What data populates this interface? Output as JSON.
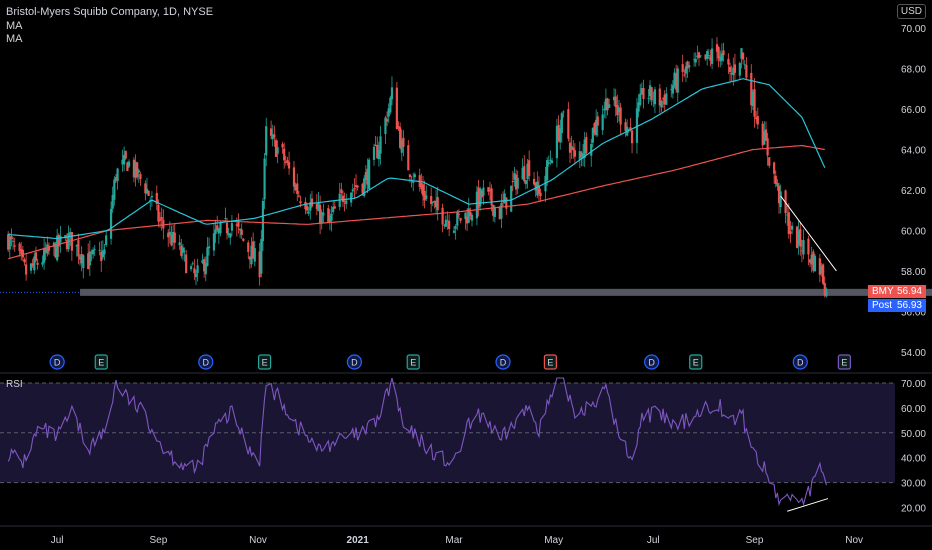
{
  "header": {
    "title": "Bristol-Myers Squibb Company, 1D, NYSE",
    "ma1": "MA",
    "ma2": "MA"
  },
  "currency": "USD",
  "price_tags": [
    {
      "label": "BMY",
      "value": "56.94",
      "color": "#ef5350"
    },
    {
      "label": "Post",
      "value": "56.93",
      "color": "#2962ff"
    }
  ],
  "rsi_label": "RSI",
  "colors": {
    "up": "#26a69a",
    "down": "#ef5350",
    "ma_short": "#26c6da",
    "ma_long": "#ef5350",
    "rsi": "#7e57c2",
    "support": "#5d606b",
    "rsi_band": "#1a1533"
  },
  "events": [
    {
      "type": "D",
      "date": "2020-07-01"
    },
    {
      "type": "E",
      "date": "2020-07-28"
    },
    {
      "type": "D",
      "date": "2020-09-30"
    },
    {
      "type": "E",
      "date": "2020-11-05"
    },
    {
      "type": "D",
      "date": "2020-12-30"
    },
    {
      "type": "E",
      "date": "2021-02-04"
    },
    {
      "type": "D",
      "date": "2021-03-31"
    },
    {
      "type": "E",
      "date": "2021-04-29"
    },
    {
      "type": "D",
      "date": "2021-06-30"
    },
    {
      "type": "E",
      "date": "2021-07-27"
    },
    {
      "type": "D",
      "date": "2021-09-29"
    },
    {
      "type": "E",
      "date": "2021-10-26"
    }
  ],
  "chart_data": {
    "type": "candlestick",
    "title": "Bristol-Myers Squibb Company, 1D, NYSE",
    "x_ticks": [
      "Jul",
      "Sep",
      "Nov",
      "2021",
      "Mar",
      "May",
      "Jul",
      "Sep",
      "Nov"
    ],
    "x_tick_dates": [
      "2020-07-01",
      "2020-09-01",
      "2020-11-01",
      "2021-01-01",
      "2021-03-01",
      "2021-05-01",
      "2021-07-01",
      "2021-09-01",
      "2021-11-01"
    ],
    "y_ticks": [
      54,
      56,
      58,
      60,
      62,
      64,
      66,
      68,
      70
    ],
    "y_tick_labels": [
      "54.00",
      "56.00",
      "58.00",
      "60.00",
      "62.00",
      "64.00",
      "66.00",
      "68.00",
      "70.00"
    ],
    "ylim": [
      53.2,
      70.8
    ],
    "close_anchors": [
      [
        "2020-06-01",
        59.6
      ],
      [
        "2020-06-12",
        57.9
      ],
      [
        "2020-06-26",
        58.9
      ],
      [
        "2020-07-08",
        59.6
      ],
      [
        "2020-07-20",
        58.5
      ],
      [
        "2020-07-30",
        58.9
      ],
      [
        "2020-08-06",
        62.8
      ],
      [
        "2020-08-13",
        63.4
      ],
      [
        "2020-08-24",
        62.2
      ],
      [
        "2020-09-02",
        60.4
      ],
      [
        "2020-09-14",
        59.0
      ],
      [
        "2020-09-24",
        57.6
      ],
      [
        "2020-10-06",
        59.7
      ],
      [
        "2020-10-16",
        60.4
      ],
      [
        "2020-10-26",
        59.1
      ],
      [
        "2020-11-02",
        58.2
      ],
      [
        "2020-11-06",
        64.8
      ],
      [
        "2020-11-16",
        63.7
      ],
      [
        "2020-11-26",
        61.8
      ],
      [
        "2020-12-04",
        61.2
      ],
      [
        "2020-12-14",
        60.3
      ],
      [
        "2020-12-24",
        61.9
      ],
      [
        "2021-01-05",
        62.4
      ],
      [
        "2021-01-14",
        64.2
      ],
      [
        "2021-01-22",
        66.7
      ],
      [
        "2021-01-29",
        63.7
      ],
      [
        "2021-02-08",
        62.1
      ],
      [
        "2021-02-18",
        61.0
      ],
      [
        "2021-03-01",
        60.4
      ],
      [
        "2021-03-09",
        60.8
      ],
      [
        "2021-03-19",
        61.8
      ],
      [
        "2021-03-29",
        60.9
      ],
      [
        "2021-04-08",
        62.5
      ],
      [
        "2021-04-16",
        63.2
      ],
      [
        "2021-04-22",
        61.7
      ],
      [
        "2021-05-03",
        64.7
      ],
      [
        "2021-05-07",
        65.5
      ],
      [
        "2021-05-14",
        63.4
      ],
      [
        "2021-05-24",
        64.8
      ],
      [
        "2021-06-03",
        66.5
      ],
      [
        "2021-06-10",
        65.8
      ],
      [
        "2021-06-18",
        64.8
      ],
      [
        "2021-06-25",
        66.8
      ],
      [
        "2021-07-06",
        66.4
      ],
      [
        "2021-07-15",
        67.4
      ],
      [
        "2021-07-23",
        68.0
      ],
      [
        "2021-08-02",
        68.4
      ],
      [
        "2021-08-10",
        68.9
      ],
      [
        "2021-08-17",
        67.6
      ],
      [
        "2021-08-24",
        68.8
      ],
      [
        "2021-08-31",
        66.4
      ],
      [
        "2021-09-10",
        63.6
      ],
      [
        "2021-09-17",
        61.4
      ],
      [
        "2021-09-24",
        59.8
      ],
      [
        "2021-09-30",
        59.3
      ],
      [
        "2021-10-06",
        58.6
      ],
      [
        "2021-10-12",
        58.0
      ],
      [
        "2021-10-15",
        56.94
      ]
    ],
    "ma_short_anchors": [
      [
        "2020-06-01",
        59.8
      ],
      [
        "2020-07-01",
        59.6
      ],
      [
        "2020-08-01",
        60.0
      ],
      [
        "2020-08-28",
        61.5
      ],
      [
        "2020-09-30",
        60.3
      ],
      [
        "2020-10-30",
        60.6
      ],
      [
        "2020-11-30",
        61.3
      ],
      [
        "2020-12-31",
        61.6
      ],
      [
        "2021-01-20",
        62.6
      ],
      [
        "2021-02-10",
        62.4
      ],
      [
        "2021-03-10",
        61.3
      ],
      [
        "2021-04-05",
        61.5
      ],
      [
        "2021-04-30",
        62.5
      ],
      [
        "2021-05-31",
        64.3
      ],
      [
        "2021-06-30",
        65.5
      ],
      [
        "2021-07-31",
        67.0
      ],
      [
        "2021-08-25",
        67.5
      ],
      [
        "2021-09-10",
        67.2
      ],
      [
        "2021-09-30",
        65.6
      ],
      [
        "2021-10-14",
        63.1
      ]
    ],
    "ma_long_anchors": [
      [
        "2020-06-01",
        58.6
      ],
      [
        "2020-08-01",
        60.0
      ],
      [
        "2020-10-01",
        60.5
      ],
      [
        "2020-12-01",
        60.3
      ],
      [
        "2021-01-15",
        60.6
      ],
      [
        "2021-03-01",
        60.9
      ],
      [
        "2021-04-15",
        61.3
      ],
      [
        "2021-05-31",
        62.2
      ],
      [
        "2021-07-15",
        63.0
      ],
      [
        "2021-08-31",
        64.0
      ],
      [
        "2021-09-30",
        64.2
      ],
      [
        "2021-10-14",
        64.0
      ]
    ],
    "support_level": 56.94,
    "support_start": "2020-07-15",
    "resistance_trendline": [
      [
        "2021-09-17",
        61.7
      ],
      [
        "2021-10-15",
        58.0
      ]
    ],
    "rsi": {
      "ylim": [
        15,
        72
      ],
      "y_ticks": [
        20,
        30,
        40,
        50,
        60,
        70
      ],
      "y_tick_labels": [
        "20.00",
        "30.00",
        "40.00",
        "50.00",
        "60.00",
        "70.00"
      ],
      "levels": [
        70,
        50,
        30
      ],
      "anchors": [
        [
          "2020-06-01",
          42
        ],
        [
          "2020-06-10",
          38
        ],
        [
          "2020-06-20",
          52
        ],
        [
          "2020-07-01",
          48
        ],
        [
          "2020-07-10",
          58
        ],
        [
          "2020-07-20",
          44
        ],
        [
          "2020-07-30",
          50
        ],
        [
          "2020-08-06",
          70
        ],
        [
          "2020-08-13",
          64
        ],
        [
          "2020-08-24",
          57
        ],
        [
          "2020-09-03",
          45
        ],
        [
          "2020-09-14",
          38
        ],
        [
          "2020-09-24",
          35
        ],
        [
          "2020-10-06",
          52
        ],
        [
          "2020-10-16",
          58
        ],
        [
          "2020-10-26",
          44
        ],
        [
          "2020-11-02",
          40
        ],
        [
          "2020-11-06",
          70
        ],
        [
          "2020-11-16",
          62
        ],
        [
          "2020-11-26",
          52
        ],
        [
          "2020-12-08",
          43
        ],
        [
          "2020-12-16",
          46
        ],
        [
          "2021-01-05",
          50
        ],
        [
          "2021-01-14",
          56
        ],
        [
          "2021-01-22",
          71
        ],
        [
          "2021-01-29",
          52
        ],
        [
          "2021-02-08",
          47
        ],
        [
          "2021-02-18",
          41
        ],
        [
          "2021-03-01",
          37
        ],
        [
          "2021-03-09",
          52
        ],
        [
          "2021-03-19",
          58
        ],
        [
          "2021-03-29",
          46
        ],
        [
          "2021-04-08",
          55
        ],
        [
          "2021-04-16",
          60
        ],
        [
          "2021-04-22",
          52
        ],
        [
          "2021-05-03",
          70
        ],
        [
          "2021-05-07",
          71
        ],
        [
          "2021-05-14",
          58
        ],
        [
          "2021-05-24",
          62
        ],
        [
          "2021-06-03",
          67
        ],
        [
          "2021-06-10",
          48
        ],
        [
          "2021-06-18",
          40
        ],
        [
          "2021-06-25",
          58
        ],
        [
          "2021-07-06",
          57
        ],
        [
          "2021-07-15",
          52
        ],
        [
          "2021-07-23",
          56
        ],
        [
          "2021-08-02",
          60
        ],
        [
          "2021-08-10",
          62
        ],
        [
          "2021-08-17",
          54
        ],
        [
          "2021-08-24",
          58
        ],
        [
          "2021-08-31",
          43
        ],
        [
          "2021-09-10",
          32
        ],
        [
          "2021-09-17",
          22
        ],
        [
          "2021-09-24",
          25
        ],
        [
          "2021-09-30",
          23
        ],
        [
          "2021-10-06",
          28
        ],
        [
          "2021-10-12",
          36
        ],
        [
          "2021-10-15",
          30
        ]
      ],
      "support_trendline": [
        [
          "2021-09-21",
          18.5
        ],
        [
          "2021-10-16",
          23.6
        ]
      ]
    }
  }
}
